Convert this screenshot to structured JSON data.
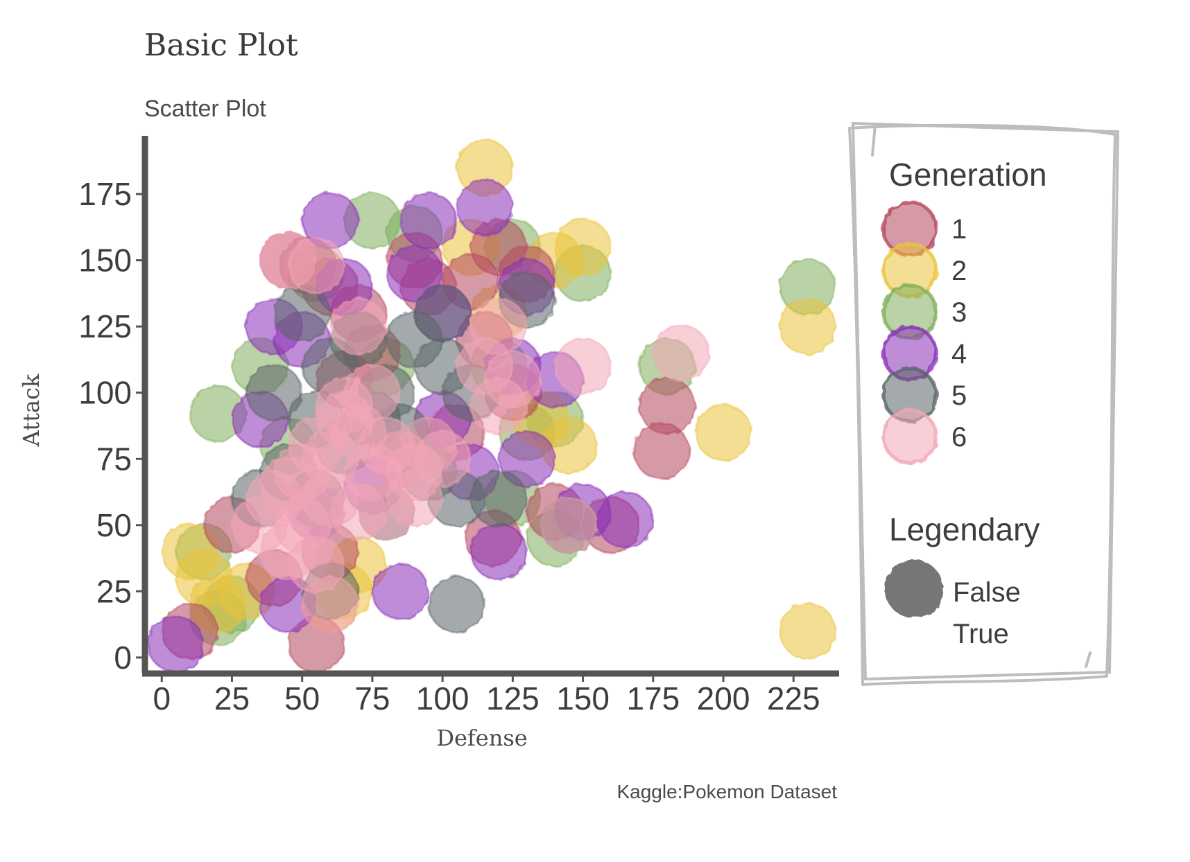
{
  "chart_data": {
    "type": "scatter",
    "title": "Basic Plot",
    "subtitle": "Scatter Plot",
    "xlabel": "Defense",
    "ylabel": "Attack",
    "caption": "Kaggle:Pokemon Dataset",
    "xlim": [
      -5,
      240
    ],
    "ylim": [
      -5,
      197
    ],
    "xticks": [
      "0",
      "25",
      "50",
      "75",
      "100",
      "125",
      "150",
      "175",
      "200",
      "225"
    ],
    "yticks": [
      "0",
      "25",
      "50",
      "75",
      "100",
      "125",
      "150",
      "175"
    ],
    "grid": false,
    "legend_position": "right",
    "legend": {
      "generation_title": "Generation",
      "generation_items": [
        "1",
        "2",
        "3",
        "4",
        "5",
        "6"
      ],
      "legendary_title": "Legendary",
      "legendary_items": [
        "False",
        "True"
      ]
    },
    "colors": {
      "1": "#b5495f",
      "2": "#eac33a",
      "3": "#7fae5c",
      "4": "#8a2fb8",
      "5": "#5a6566",
      "6": "#f2a6b6"
    },
    "series": [
      {
        "name": "1",
        "points": [
          [
            45,
            150
          ],
          [
            52,
            148
          ],
          [
            60,
            140
          ],
          [
            90,
            150
          ],
          [
            95,
            140
          ],
          [
            110,
            142
          ],
          [
            120,
            155
          ],
          [
            130,
            145
          ],
          [
            180,
            95
          ],
          [
            178,
            78
          ],
          [
            70,
            130
          ],
          [
            75,
            115
          ],
          [
            125,
            100
          ],
          [
            115,
            120
          ],
          [
            55,
            5
          ],
          [
            10,
            10
          ],
          [
            65,
            105
          ],
          [
            160,
            50
          ],
          [
            140,
            55
          ],
          [
            118,
            45
          ],
          [
            85,
            75
          ],
          [
            60,
            40
          ],
          [
            40,
            30
          ],
          [
            25,
            50
          ],
          [
            105,
            85
          ]
        ]
      },
      {
        "name": "2",
        "points": [
          [
            115,
            185
          ],
          [
            150,
            155
          ],
          [
            230,
            10
          ],
          [
            230,
            125
          ],
          [
            200,
            85
          ],
          [
            145,
            80
          ],
          [
            120,
            130
          ],
          [
            15,
            30
          ],
          [
            10,
            40
          ],
          [
            20,
            20
          ],
          [
            60,
            20
          ],
          [
            65,
            25
          ],
          [
            70,
            35
          ],
          [
            135,
            90
          ],
          [
            30,
            25
          ],
          [
            110,
            155
          ],
          [
            140,
            150
          ]
        ]
      },
      {
        "name": "3",
        "points": [
          [
            20,
            92
          ],
          [
            75,
            165
          ],
          [
            150,
            145
          ],
          [
            230,
            140
          ],
          [
            180,
            110
          ],
          [
            130,
            85
          ],
          [
            140,
            90
          ],
          [
            120,
            110
          ],
          [
            20,
            15
          ],
          [
            25,
            20
          ],
          [
            15,
            40
          ],
          [
            140,
            45
          ],
          [
            125,
            60
          ],
          [
            55,
            145
          ],
          [
            125,
            155
          ],
          [
            80,
            110
          ],
          [
            35,
            110
          ],
          [
            90,
            160
          ],
          [
            45,
            80
          ],
          [
            95,
            80
          ]
        ]
      },
      {
        "name": "4",
        "points": [
          [
            60,
            165
          ],
          [
            95,
            165
          ],
          [
            115,
            170
          ],
          [
            40,
            125
          ],
          [
            50,
            120
          ],
          [
            130,
            140
          ],
          [
            90,
            145
          ],
          [
            100,
            130
          ],
          [
            125,
            110
          ],
          [
            140,
            105
          ],
          [
            130,
            75
          ],
          [
            165,
            52
          ],
          [
            150,
            55
          ],
          [
            120,
            40
          ],
          [
            85,
            25
          ],
          [
            5,
            5
          ],
          [
            45,
            20
          ],
          [
            35,
            90
          ],
          [
            100,
            90
          ],
          [
            110,
            70
          ],
          [
            65,
            140
          ],
          [
            55,
            55
          ],
          [
            75,
            65
          ]
        ]
      },
      {
        "name": "5",
        "points": [
          [
            50,
            130
          ],
          [
            60,
            110
          ],
          [
            70,
            120
          ],
          [
            80,
            100
          ],
          [
            90,
            120
          ],
          [
            100,
            110
          ],
          [
            100,
            130
          ],
          [
            110,
            100
          ],
          [
            55,
            90
          ],
          [
            65,
            80
          ],
          [
            75,
            90
          ],
          [
            85,
            85
          ],
          [
            95,
            70
          ],
          [
            105,
            60
          ],
          [
            45,
            70
          ],
          [
            55,
            60
          ],
          [
            35,
            60
          ],
          [
            40,
            100
          ],
          [
            130,
            135
          ],
          [
            105,
            20
          ],
          [
            60,
            25
          ],
          [
            145,
            50
          ],
          [
            80,
            55
          ],
          [
            120,
            60
          ]
        ]
      },
      {
        "name": "6",
        "points": [
          [
            45,
            65
          ],
          [
            50,
            70
          ],
          [
            55,
            80
          ],
          [
            60,
            75
          ],
          [
            65,
            90
          ],
          [
            70,
            85
          ],
          [
            75,
            70
          ],
          [
            80,
            80
          ],
          [
            85,
            75
          ],
          [
            90,
            70
          ],
          [
            95,
            80
          ],
          [
            100,
            75
          ],
          [
            55,
            55
          ],
          [
            60,
            60
          ],
          [
            70,
            55
          ],
          [
            80,
            55
          ],
          [
            90,
            60
          ],
          [
            50,
            50
          ],
          [
            45,
            40
          ],
          [
            55,
            35
          ],
          [
            65,
            95
          ],
          [
            75,
            100
          ],
          [
            120,
            95
          ],
          [
            125,
            105
          ],
          [
            115,
            110
          ],
          [
            150,
            110
          ],
          [
            185,
            115
          ],
          [
            145,
            50
          ],
          [
            60,
            20
          ],
          [
            45,
            150
          ],
          [
            55,
            148
          ],
          [
            35,
            50
          ],
          [
            40,
            60
          ],
          [
            70,
            125
          ],
          [
            120,
            125
          ]
        ]
      }
    ]
  }
}
